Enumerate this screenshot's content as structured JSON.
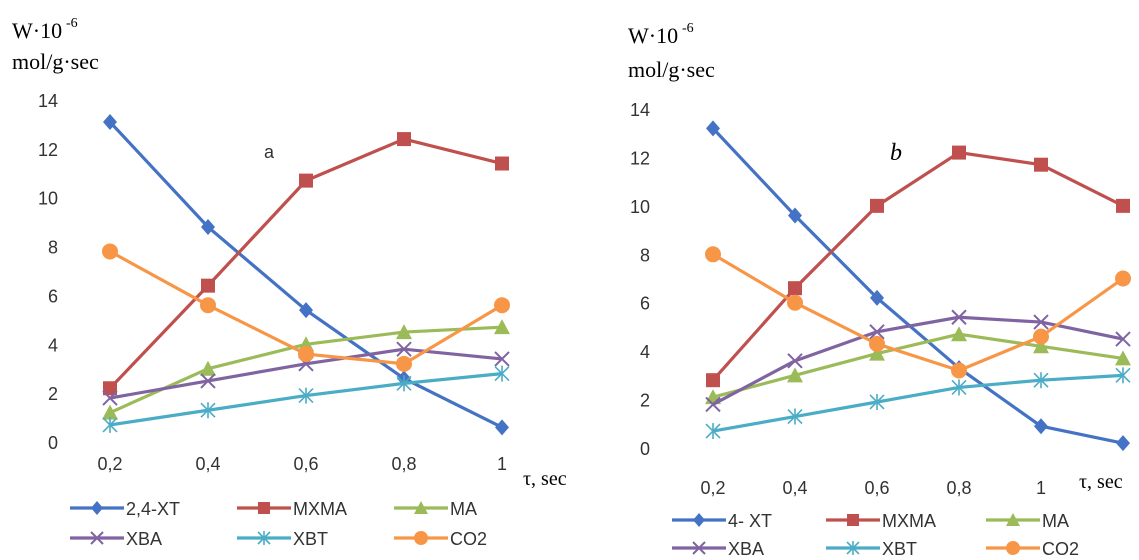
{
  "chart_data": [
    {
      "type": "line",
      "ylabel_lines": [
        "W·10",
        "-6",
        "mol/g·sec"
      ],
      "xlabel": "τ, sec",
      "panel_label": "a",
      "categories": [
        "0,2",
        "0,4",
        "0,6",
        "0,8",
        "1"
      ],
      "yticks": [
        "0",
        "2",
        "4",
        "6",
        "8",
        "10",
        "12",
        "14"
      ],
      "ylim": [
        0,
        14
      ],
      "grid": false,
      "legend_position": "bottom",
      "series": [
        {
          "name": "2,4-XT",
          "color": "#4472C4",
          "marker": "diamond",
          "values": [
            13.1,
            8.8,
            5.4,
            2.6,
            0.6
          ]
        },
        {
          "name": "MXMA",
          "color": "#C0504D",
          "marker": "square",
          "values": [
            2.2,
            6.4,
            10.7,
            12.4,
            11.4
          ]
        },
        {
          "name": "MA",
          "color": "#9BBB59",
          "marker": "triangle",
          "values": [
            1.2,
            3.0,
            4.0,
            4.5,
            4.7
          ]
        },
        {
          "name": "XBA",
          "color": "#8064A2",
          "marker": "x",
          "values": [
            1.8,
            2.5,
            3.2,
            3.8,
            3.4
          ]
        },
        {
          "name": "XBT",
          "color": "#4BACC6",
          "marker": "star",
          "values": [
            0.7,
            1.3,
            1.9,
            2.4,
            2.8
          ]
        },
        {
          "name": "CO2",
          "color": "#F79646",
          "marker": "circle",
          "values": [
            7.8,
            5.6,
            3.6,
            3.2,
            5.6
          ]
        }
      ]
    },
    {
      "type": "line",
      "ylabel_lines": [
        "W·10",
        "-6",
        "mol/g·sec"
      ],
      "xlabel": "τ, sec",
      "panel_label": "b",
      "categories": [
        "0,2",
        "0,4",
        "0,6",
        "0,8",
        "1",
        ""
      ],
      "yticks": [
        "0",
        "2",
        "4",
        "6",
        "8",
        "10",
        "12",
        "14"
      ],
      "ylim": [
        0,
        14
      ],
      "grid": false,
      "legend_position": "bottom",
      "series": [
        {
          "name": "4- XT",
          "color": "#4472C4",
          "marker": "diamond",
          "values": [
            13.2,
            9.6,
            6.2,
            3.3,
            0.9,
            0.2
          ]
        },
        {
          "name": "MXMA",
          "color": "#C0504D",
          "marker": "square",
          "values": [
            2.8,
            6.6,
            10.0,
            12.2,
            11.7,
            10.0
          ]
        },
        {
          "name": "MA",
          "color": "#9BBB59",
          "marker": "triangle",
          "values": [
            2.1,
            3.0,
            3.9,
            4.7,
            4.2,
            3.7
          ]
        },
        {
          "name": "XBA",
          "color": "#8064A2",
          "marker": "x",
          "values": [
            1.8,
            3.6,
            4.8,
            5.4,
            5.2,
            4.5
          ]
        },
        {
          "name": "XBT",
          "color": "#4BACC6",
          "marker": "star",
          "values": [
            0.7,
            1.3,
            1.9,
            2.5,
            2.8,
            3.0
          ]
        },
        {
          "name": "CO2",
          "color": "#F79646",
          "marker": "circle",
          "values": [
            8.0,
            6.0,
            4.3,
            3.2,
            4.6,
            7.0
          ]
        }
      ]
    }
  ]
}
